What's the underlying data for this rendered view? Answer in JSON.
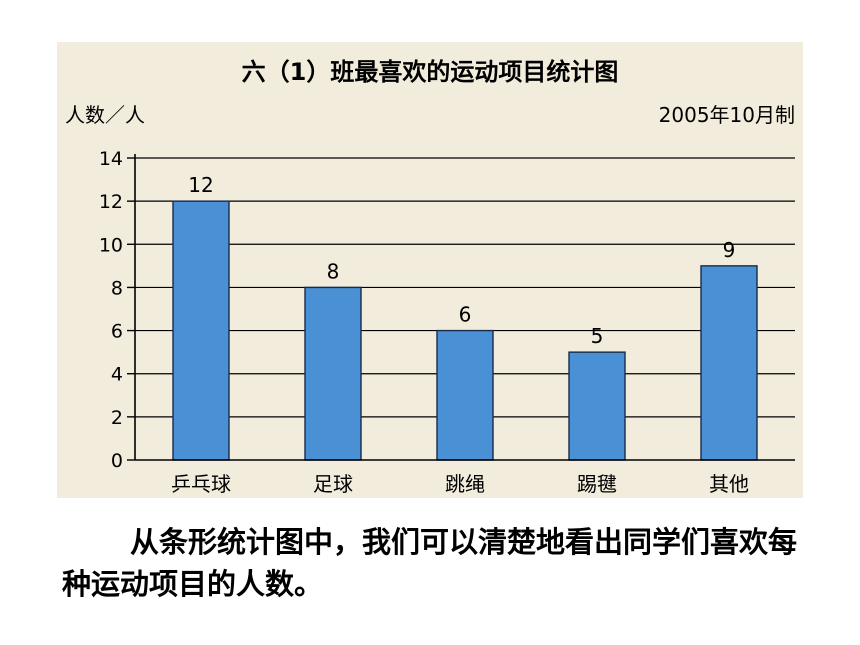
{
  "chart_data": {
    "type": "bar",
    "title": "六（1）班最喜欢的运动项目统计图",
    "ylabel": "人数／人",
    "note": "2005年10月制",
    "categories": [
      "乒乓球",
      "足球",
      "跳绳",
      "踢毽",
      "其他"
    ],
    "values": [
      12,
      8,
      6,
      5,
      9
    ],
    "ylim": [
      0,
      14
    ],
    "yticks": [
      0,
      2,
      4,
      6,
      8,
      10,
      12,
      14
    ],
    "grid": true,
    "bar_color": "#4a90d4"
  },
  "caption": "从条形统计图中，我们可以清楚地看出同学们喜欢每种运动项目的人数。"
}
